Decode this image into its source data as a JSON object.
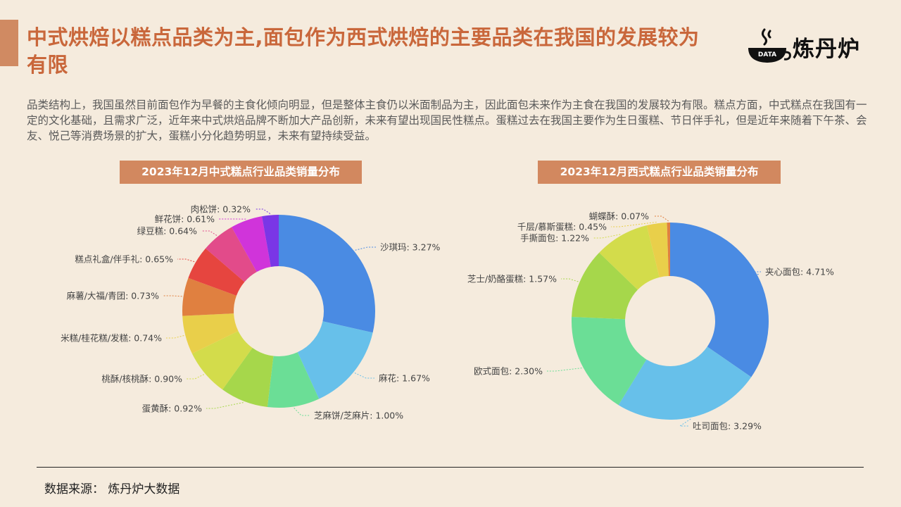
{
  "header": {
    "title": "中式烘焙以糕点品类为主,面包作为西式烘焙的主要品类在我国的发展较为有限",
    "logo_text": "炼丹炉",
    "logo_badge": "DATA"
  },
  "intro": "品类结构上，我国虽然目前面包作为早餐的主食化倾向明显，但是整体主食仍以米面制品为主，因此面包未来作为主食在我国的发展较为有限。糕点方面，中式糕点在我国有一定的文化基础，且需求广泛，近年来中式烘焙品牌不断加大产品创新，未来有望出现国民性糕点。蛋糕过去在我国主要作为生日蛋糕、节日伴手礼，但是近年来随着下午茶、会友、悦己等消费场景的扩大，蛋糕小分化趋势明显，未来有望持续受益。",
  "footer": {
    "source": "数据来源：  炼丹炉大数据"
  },
  "chart_data": [
    {
      "type": "pie",
      "title": "2023年12月中式糕点行业品类销量分布",
      "donut": true,
      "slices": [
        {
          "label": "沙琪玛",
          "value": 3.27,
          "color": "#4a8be3"
        },
        {
          "label": "麻花",
          "value": 1.67,
          "color": "#67c0ea"
        },
        {
          "label": "芝麻饼/芝麻片",
          "value": 1.0,
          "color": "#6bde96"
        },
        {
          "label": "蛋黄酥",
          "value": 0.92,
          "color": "#a6d74b"
        },
        {
          "label": "桃酥/核桃酥",
          "value": 0.9,
          "color": "#d3dc4b"
        },
        {
          "label": "米糕/桂花糕/发糕",
          "value": 0.74,
          "color": "#e9cf4a"
        },
        {
          "label": "麻薯/大福/青团",
          "value": 0.73,
          "color": "#e08040"
        },
        {
          "label": "糕点礼盒/伴手礼",
          "value": 0.65,
          "color": "#e6453f"
        },
        {
          "label": "绿豆糕",
          "value": 0.64,
          "color": "#e24b8a"
        },
        {
          "label": "鲜花饼",
          "value": 0.61,
          "color": "#d034da"
        },
        {
          "label": "肉松饼",
          "value": 0.32,
          "color": "#7a36e6"
        }
      ]
    },
    {
      "type": "pie",
      "title": "2023年12月西式糕点行业品类销量分布",
      "donut": true,
      "slices": [
        {
          "label": "夹心面包",
          "value": 4.71,
          "color": "#4a8be3"
        },
        {
          "label": "吐司面包",
          "value": 3.29,
          "color": "#67c0ea"
        },
        {
          "label": "欧式面包",
          "value": 2.3,
          "color": "#6bde96"
        },
        {
          "label": "芝士/奶酪蛋糕",
          "value": 1.57,
          "color": "#a6d74b"
        },
        {
          "label": "手撕面包",
          "value": 1.22,
          "color": "#d3dc4b"
        },
        {
          "label": "千层/慕斯蛋糕",
          "value": 0.45,
          "color": "#e9cf4a"
        },
        {
          "label": "蝴蝶酥",
          "value": 0.07,
          "color": "#e08040"
        }
      ]
    }
  ]
}
